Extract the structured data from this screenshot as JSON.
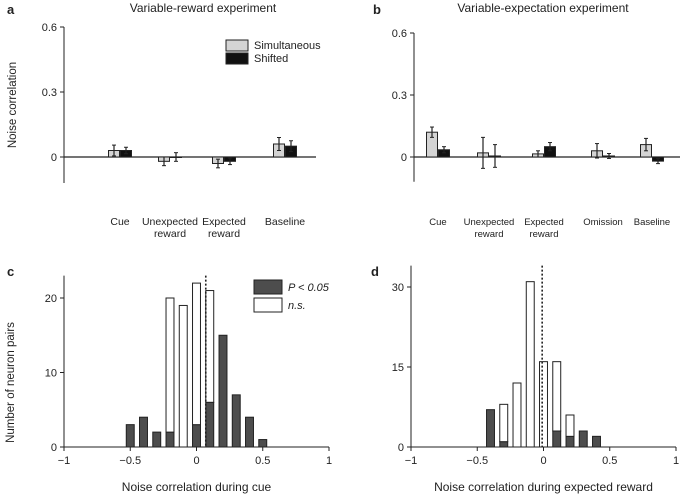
{
  "colors": {
    "axis": "#222222",
    "light_bar": "#d4d4d4",
    "dark_bar": "#111111",
    "sig_bar": "#4d4d4d",
    "ns_bar": "#ffffff"
  },
  "chart_data": [
    {
      "panel": "a",
      "type": "bar",
      "title": "Variable-reward experiment",
      "ylabel": "Noise correlation",
      "xlabel": "",
      "ylim": [
        -0.12,
        0.6
      ],
      "yticks": [
        "0",
        "0.3",
        "0.6"
      ],
      "categories": [
        "Cue",
        "Unexpected reward",
        "Expected reward",
        "Baseline"
      ],
      "series": [
        {
          "name": "Simultaneous",
          "values": [
            0.03,
            -0.02,
            -0.03,
            0.06
          ],
          "err": [
            0.025,
            0.02,
            0.02,
            0.03
          ]
        },
        {
          "name": "Shifted",
          "values": [
            0.03,
            0.0,
            -0.02,
            0.05
          ],
          "err": [
            0.015,
            0.02,
            0.015,
            0.025
          ]
        }
      ],
      "legend": "top-right"
    },
    {
      "panel": "b",
      "type": "bar",
      "title": "Variable-expectation experiment",
      "ylabel": "",
      "xlabel": "",
      "ylim": [
        -0.12,
        0.6
      ],
      "yticks": [
        "0",
        "0.3",
        "0.6"
      ],
      "categories": [
        "Cue",
        "Unexpected reward",
        "Expected reward",
        "Omission",
        "Baseline"
      ],
      "series": [
        {
          "name": "",
          "values": [
            0.12,
            0.02,
            0.015,
            0.03,
            0.06
          ],
          "err": [
            0.025,
            0.075,
            0.015,
            0.035,
            0.03
          ]
        },
        {
          "name": "",
          "values": [
            0.035,
            0.005,
            0.05,
            0.005,
            -0.02
          ],
          "err": [
            0.015,
            0.055,
            0.02,
            0.012,
            0.012
          ]
        }
      ]
    },
    {
      "panel": "c",
      "type": "bar",
      "xlabel": "Noise correlation during cue",
      "ylabel": "Number of neuron pairs",
      "xlim": [
        -1,
        1
      ],
      "ylim": [
        0,
        23
      ],
      "xticks": [
        "−1",
        "−0.5",
        "0",
        "0.5",
        "1"
      ],
      "yticks": [
        "0",
        "10",
        "20"
      ],
      "bin_width": 0.1,
      "bin_centers": [
        -0.5,
        -0.4,
        -0.3,
        -0.2,
        -0.1,
        0.0,
        0.1,
        0.2,
        0.3,
        0.4,
        0.5
      ],
      "series": [
        {
          "name": "P < 0.05",
          "values": [
            3,
            4,
            2,
            2,
            0,
            3,
            6,
            15,
            7,
            4,
            1
          ]
        },
        {
          "name": "n.s.",
          "values": [
            0,
            0,
            0,
            18,
            19,
            19,
            15,
            0,
            0,
            0,
            0
          ]
        }
      ],
      "mean_line_x": 0.07,
      "legend": "top-right"
    },
    {
      "panel": "d",
      "type": "bar",
      "xlabel": "Noise correlation during expected reward",
      "ylabel": "",
      "xlim": [
        -1,
        1
      ],
      "ylim": [
        0,
        34
      ],
      "xticks": [
        "−1",
        "−0.5",
        "0",
        "0.5",
        "1"
      ],
      "yticks": [
        "0",
        "15",
        "30"
      ],
      "bin_width": 0.1,
      "bin_centers": [
        -0.4,
        -0.3,
        -0.2,
        -0.1,
        0.0,
        0.1,
        0.2,
        0.3,
        0.4
      ],
      "series": [
        {
          "name": "",
          "values": [
            7,
            1,
            0,
            0,
            0,
            3,
            2,
            3,
            2
          ]
        },
        {
          "name": "",
          "values": [
            0,
            7,
            12,
            31,
            16,
            13,
            4,
            0,
            0
          ]
        }
      ],
      "mean_line_x": -0.01
    }
  ]
}
